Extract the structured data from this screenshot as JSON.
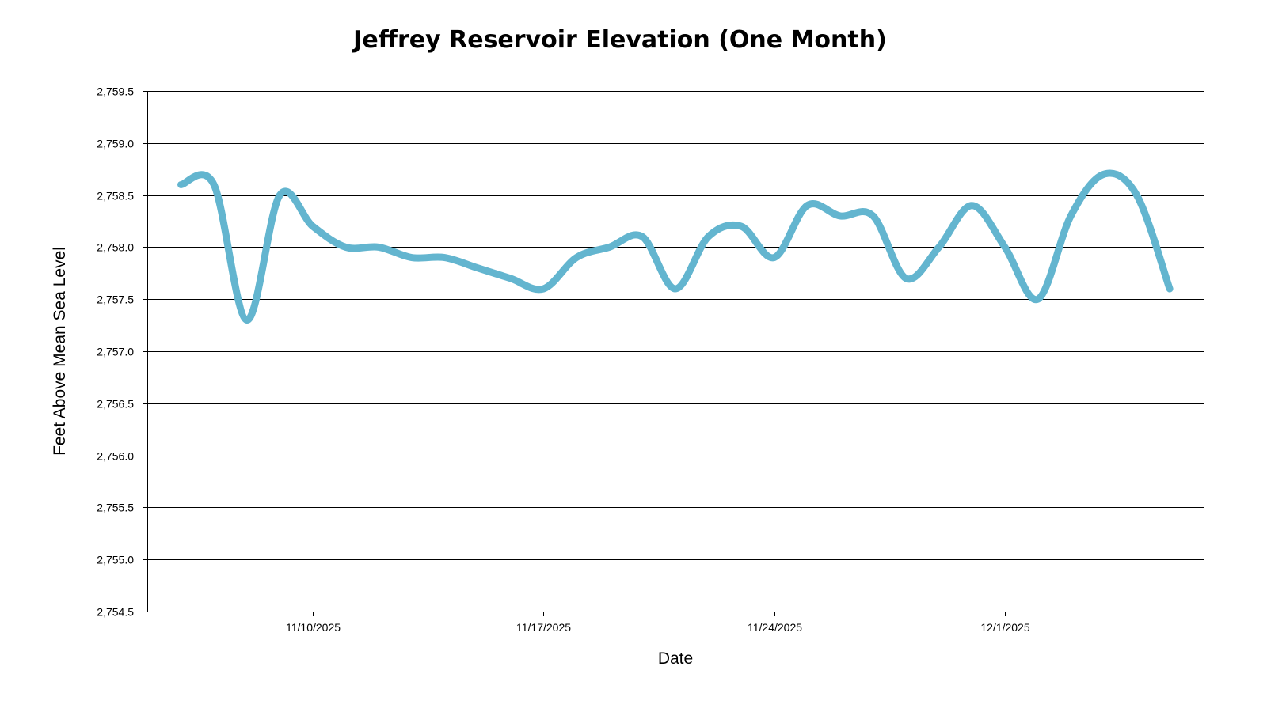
{
  "chart_data": {
    "type": "line",
    "title": "Jeffrey Reservoir Elevation (One Month)",
    "xlabel": "Date",
    "ylabel": "Feet Above Mean Sea Level",
    "ylim": [
      2754.5,
      2759.5
    ],
    "xlim": [
      "2025-11-05",
      "2025-12-07"
    ],
    "grid": true,
    "line_color": "#63b5cf",
    "y_ticks": [
      "2,754.5",
      "2,755.0",
      "2,755.5",
      "2,756.0",
      "2,756.5",
      "2,757.0",
      "2,757.5",
      "2,758.0",
      "2,758.5",
      "2,759.0",
      "2,759.5"
    ],
    "y_tick_values": [
      2754.5,
      2755.0,
      2755.5,
      2756.0,
      2756.5,
      2757.0,
      2757.5,
      2758.0,
      2758.5,
      2759.0,
      2759.5
    ],
    "x_ticks": [
      "11/10/2025",
      "11/17/2025",
      "11/24/2025",
      "12/1/2025"
    ],
    "x_tick_values": [
      "2025-11-10",
      "2025-11-17",
      "2025-11-24",
      "2025-12-01"
    ],
    "x": [
      "2025-11-06",
      "2025-11-07",
      "2025-11-08",
      "2025-11-09",
      "2025-11-10",
      "2025-11-11",
      "2025-11-12",
      "2025-11-13",
      "2025-11-14",
      "2025-11-15",
      "2025-11-16",
      "2025-11-17",
      "2025-11-18",
      "2025-11-19",
      "2025-11-20",
      "2025-11-21",
      "2025-11-22",
      "2025-11-23",
      "2025-11-24",
      "2025-11-25",
      "2025-11-26",
      "2025-11-27",
      "2025-11-28",
      "2025-11-29",
      "2025-11-30",
      "2025-12-01",
      "2025-12-02",
      "2025-12-03",
      "2025-12-04",
      "2025-12-05",
      "2025-12-06"
    ],
    "values": [
      2758.6,
      2758.6,
      2757.3,
      2758.5,
      2758.2,
      2758.0,
      2758.0,
      2757.9,
      2757.9,
      2757.8,
      2757.7,
      2757.6,
      2757.9,
      2758.0,
      2758.1,
      2757.6,
      2758.1,
      2758.2,
      2757.9,
      2758.4,
      2758.3,
      2758.3,
      2757.7,
      2758.0,
      2758.4,
      2758.0,
      2757.5,
      2758.3,
      2758.7,
      2758.5,
      2757.6
    ]
  }
}
